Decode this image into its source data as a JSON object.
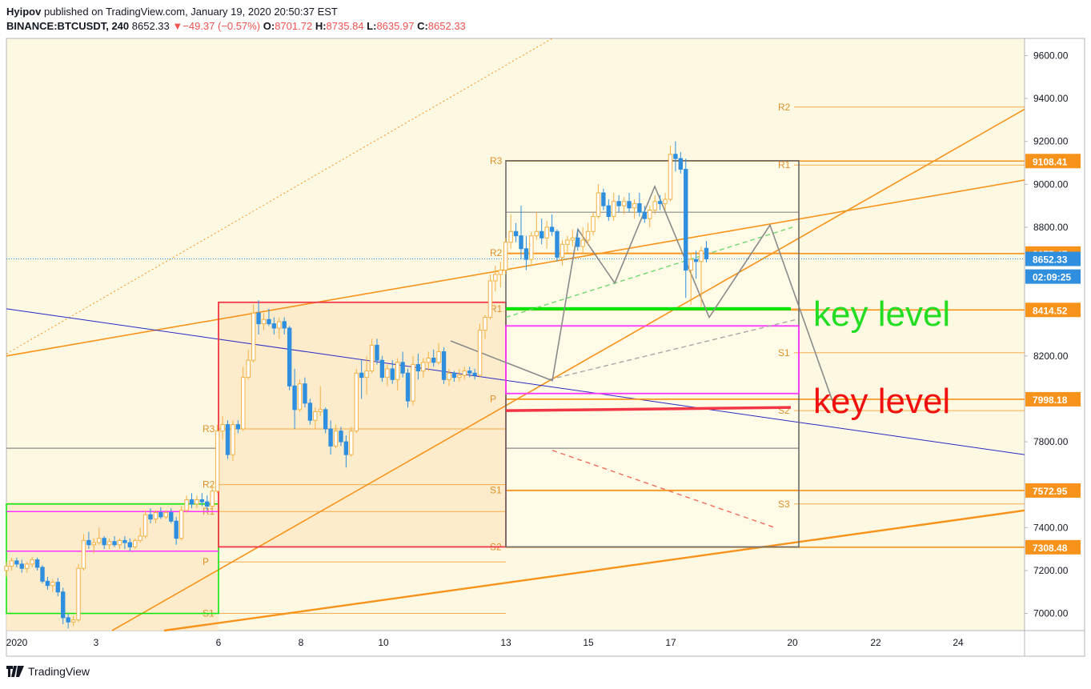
{
  "header": {
    "author": "Hyipov",
    "published_text": "published on TradingView.com, January 19, 2020 20:50:37 EST",
    "symbol": "BINANCE:BTCUSDT, 240",
    "last": "8652.33",
    "change_arrow": "▼",
    "change": "−49.37 (−0.57%)",
    "o_label": "O:",
    "o": "8701.72",
    "h_label": "H:",
    "h": "8735.84",
    "l_label": "L:",
    "l": "8635.97",
    "c_label": "C:",
    "c": "8652.33"
  },
  "footer": {
    "brand": "TradingView",
    "logo_icon": "tradingview-logo-icon"
  },
  "colors": {
    "background": "#fdf8e1",
    "orange": "#f7931a",
    "up": "#f5b041",
    "down": "#2f8fde",
    "red": "#f23645",
    "green": "#00e600",
    "magenta": "#ff33ff",
    "blue_line": "#2929c8",
    "grey": "#8a8a8a"
  },
  "chart_data": {
    "type": "candlestick",
    "ylim": [
      6920,
      9680
    ],
    "y_ticks": [
      "9600.00",
      "9400.00",
      "9200.00",
      "9000.00",
      "8800.00",
      "8200.00",
      "7800.00",
      "7400.00",
      "7200.00",
      "7000.00"
    ],
    "x_ticks": [
      "2020",
      "3",
      "6",
      "8",
      "10",
      "13",
      "15",
      "17",
      "20",
      "22",
      "24"
    ],
    "price_labels": [
      {
        "text": "9108.41",
        "value": 9108.41,
        "style": "orange"
      },
      {
        "text": "8677.47",
        "value": 8677.47,
        "style": "orange"
      },
      {
        "text": "8652.33",
        "value": 8652.33,
        "style": "blue"
      },
      {
        "text": "02:09:25",
        "value": 8570,
        "style": "blue"
      },
      {
        "text": "8414.52",
        "value": 8414.52,
        "style": "orange"
      },
      {
        "text": "7998.18",
        "value": 7998.18,
        "style": "orange"
      },
      {
        "text": "7572.95",
        "value": 7572.95,
        "style": "orange"
      },
      {
        "text": "7308.48",
        "value": 7308.48,
        "style": "orange"
      }
    ],
    "annotations": [
      {
        "text": "key level",
        "color": "green",
        "value": 8400
      },
      {
        "text": "key level",
        "color": "red",
        "value": 7995
      }
    ],
    "pivots_week1": [
      {
        "label": "R3",
        "value": 7860
      },
      {
        "label": "R2",
        "value": 7600
      },
      {
        "label": "R1",
        "value": 7475
      },
      {
        "label": "P",
        "value": 7240
      },
      {
        "label": "S1",
        "value": 7000
      }
    ],
    "pivots_week2": [
      {
        "label": "R3",
        "value": 9110
      },
      {
        "label": "R2",
        "value": 8680
      },
      {
        "label": "R1",
        "value": 8420
      },
      {
        "label": "P",
        "value": 8000
      },
      {
        "label": "S1",
        "value": 7575
      },
      {
        "label": "S2",
        "value": 7310
      }
    ],
    "pivots_week3": [
      {
        "label": "R2",
        "value": 9360
      },
      {
        "label": "R1",
        "value": 9090
      },
      {
        "label": "S1",
        "value": 8215
      },
      {
        "label": "S2",
        "value": 7945
      },
      {
        "label": "S3",
        "value": 7510
      }
    ],
    "candles": [
      {
        "o": 7200,
        "h": 7240,
        "l": 7170,
        "c": 7220
      },
      {
        "o": 7220,
        "h": 7260,
        "l": 7200,
        "c": 7245
      },
      {
        "o": 7245,
        "h": 7260,
        "l": 7215,
        "c": 7230
      },
      {
        "o": 7230,
        "h": 7250,
        "l": 7190,
        "c": 7210
      },
      {
        "o": 7210,
        "h": 7240,
        "l": 7190,
        "c": 7230
      },
      {
        "o": 7230,
        "h": 7265,
        "l": 7215,
        "c": 7250
      },
      {
        "o": 7250,
        "h": 7260,
        "l": 7200,
        "c": 7215
      },
      {
        "o": 7215,
        "h": 7225,
        "l": 7140,
        "c": 7150
      },
      {
        "o": 7150,
        "h": 7170,
        "l": 7110,
        "c": 7130
      },
      {
        "o": 7130,
        "h": 7160,
        "l": 7100,
        "c": 7145
      },
      {
        "o": 7145,
        "h": 7165,
        "l": 7080,
        "c": 7100
      },
      {
        "o": 7100,
        "h": 7120,
        "l": 6950,
        "c": 6980
      },
      {
        "o": 6980,
        "h": 7000,
        "l": 6930,
        "c": 6960
      },
      {
        "o": 6960,
        "h": 6990,
        "l": 6940,
        "c": 6970
      },
      {
        "o": 6970,
        "h": 7230,
        "l": 6960,
        "c": 7210
      },
      {
        "o": 7210,
        "h": 7370,
        "l": 7200,
        "c": 7340
      },
      {
        "o": 7340,
        "h": 7380,
        "l": 7300,
        "c": 7320
      },
      {
        "o": 7320,
        "h": 7350,
        "l": 7280,
        "c": 7330
      },
      {
        "o": 7330,
        "h": 7400,
        "l": 7320,
        "c": 7350
      },
      {
        "o": 7350,
        "h": 7360,
        "l": 7300,
        "c": 7320
      },
      {
        "o": 7320,
        "h": 7350,
        "l": 7300,
        "c": 7335
      },
      {
        "o": 7335,
        "h": 7360,
        "l": 7310,
        "c": 7320
      },
      {
        "o": 7320,
        "h": 7350,
        "l": 7300,
        "c": 7340
      },
      {
        "o": 7340,
        "h": 7360,
        "l": 7300,
        "c": 7330
      },
      {
        "o": 7330,
        "h": 7350,
        "l": 7290,
        "c": 7310
      },
      {
        "o": 7310,
        "h": 7350,
        "l": 7300,
        "c": 7340
      },
      {
        "o": 7340,
        "h": 7400,
        "l": 7330,
        "c": 7360
      },
      {
        "o": 7360,
        "h": 7480,
        "l": 7350,
        "c": 7460
      },
      {
        "o": 7460,
        "h": 7490,
        "l": 7420,
        "c": 7440
      },
      {
        "o": 7440,
        "h": 7480,
        "l": 7420,
        "c": 7470
      },
      {
        "o": 7470,
        "h": 7495,
        "l": 7440,
        "c": 7450
      },
      {
        "o": 7450,
        "h": 7480,
        "l": 7440,
        "c": 7470
      },
      {
        "o": 7470,
        "h": 7490,
        "l": 7420,
        "c": 7430
      },
      {
        "o": 7430,
        "h": 7450,
        "l": 7320,
        "c": 7350
      },
      {
        "o": 7350,
        "h": 7500,
        "l": 7340,
        "c": 7480
      },
      {
        "o": 7480,
        "h": 7550,
        "l": 7470,
        "c": 7530
      },
      {
        "o": 7530,
        "h": 7560,
        "l": 7490,
        "c": 7510
      },
      {
        "o": 7510,
        "h": 7550,
        "l": 7490,
        "c": 7530
      },
      {
        "o": 7530,
        "h": 7560,
        "l": 7500,
        "c": 7520
      },
      {
        "o": 7520,
        "h": 7550,
        "l": 7480,
        "c": 7500
      },
      {
        "o": 7500,
        "h": 7600,
        "l": 7490,
        "c": 7570
      },
      {
        "o": 7570,
        "h": 7880,
        "l": 7560,
        "c": 7850
      },
      {
        "o": 7850,
        "h": 7920,
        "l": 7810,
        "c": 7880
      },
      {
        "o": 7880,
        "h": 7900,
        "l": 7720,
        "c": 7740
      },
      {
        "o": 7740,
        "h": 7900,
        "l": 7710,
        "c": 7880
      },
      {
        "o": 7880,
        "h": 7900,
        "l": 7840,
        "c": 7860
      },
      {
        "o": 7860,
        "h": 8150,
        "l": 7850,
        "c": 8100
      },
      {
        "o": 8100,
        "h": 8230,
        "l": 8090,
        "c": 8180
      },
      {
        "o": 8180,
        "h": 8440,
        "l": 8170,
        "c": 8400
      },
      {
        "o": 8400,
        "h": 8460,
        "l": 8300,
        "c": 8350
      },
      {
        "o": 8350,
        "h": 8400,
        "l": 8320,
        "c": 8370
      },
      {
        "o": 8370,
        "h": 8420,
        "l": 8340,
        "c": 8350
      },
      {
        "o": 8350,
        "h": 8380,
        "l": 8300,
        "c": 8330
      },
      {
        "o": 8330,
        "h": 8380,
        "l": 8280,
        "c": 8360
      },
      {
        "o": 8360,
        "h": 8380,
        "l": 8300,
        "c": 8330
      },
      {
        "o": 8330,
        "h": 8340,
        "l": 8040,
        "c": 8060
      },
      {
        "o": 8060,
        "h": 8140,
        "l": 7860,
        "c": 7950
      },
      {
        "o": 7950,
        "h": 8090,
        "l": 7940,
        "c": 8070
      },
      {
        "o": 8070,
        "h": 8100,
        "l": 7960,
        "c": 7980
      },
      {
        "o": 7980,
        "h": 8000,
        "l": 7880,
        "c": 7900
      },
      {
        "o": 7900,
        "h": 7960,
        "l": 7860,
        "c": 7940
      },
      {
        "o": 7940,
        "h": 8060,
        "l": 7920,
        "c": 7950
      },
      {
        "o": 7950,
        "h": 7960,
        "l": 7840,
        "c": 7860
      },
      {
        "o": 7860,
        "h": 7900,
        "l": 7740,
        "c": 7780
      },
      {
        "o": 7780,
        "h": 7880,
        "l": 7770,
        "c": 7850
      },
      {
        "o": 7850,
        "h": 7870,
        "l": 7780,
        "c": 7800
      },
      {
        "o": 7800,
        "h": 7830,
        "l": 7680,
        "c": 7740
      },
      {
        "o": 7740,
        "h": 7870,
        "l": 7730,
        "c": 7850
      },
      {
        "o": 7850,
        "h": 8140,
        "l": 7840,
        "c": 8120
      },
      {
        "o": 8120,
        "h": 8180,
        "l": 8000,
        "c": 8100
      },
      {
        "o": 8100,
        "h": 8200,
        "l": 8020,
        "c": 8130
      },
      {
        "o": 8130,
        "h": 8280,
        "l": 8120,
        "c": 8250
      },
      {
        "o": 8250,
        "h": 8280,
        "l": 8160,
        "c": 8180
      },
      {
        "o": 8180,
        "h": 8200,
        "l": 8080,
        "c": 8100
      },
      {
        "o": 8100,
        "h": 8160,
        "l": 8060,
        "c": 8140
      },
      {
        "o": 8140,
        "h": 8180,
        "l": 8070,
        "c": 8090
      },
      {
        "o": 8090,
        "h": 8190,
        "l": 8040,
        "c": 8170
      },
      {
        "o": 8170,
        "h": 8220,
        "l": 8100,
        "c": 8120
      },
      {
        "o": 8120,
        "h": 8140,
        "l": 7960,
        "c": 7990
      },
      {
        "o": 7990,
        "h": 8200,
        "l": 7970,
        "c": 8160
      },
      {
        "o": 8160,
        "h": 8210,
        "l": 8090,
        "c": 8130
      },
      {
        "o": 8130,
        "h": 8190,
        "l": 8100,
        "c": 8170
      },
      {
        "o": 8170,
        "h": 8220,
        "l": 8130,
        "c": 8190
      },
      {
        "o": 8190,
        "h": 8230,
        "l": 8150,
        "c": 8170
      },
      {
        "o": 8170,
        "h": 8260,
        "l": 8160,
        "c": 8220
      },
      {
        "o": 8220,
        "h": 8240,
        "l": 8070,
        "c": 8090
      },
      {
        "o": 8090,
        "h": 8140,
        "l": 8060,
        "c": 8120
      },
      {
        "o": 8120,
        "h": 8130,
        "l": 8080,
        "c": 8100
      },
      {
        "o": 8100,
        "h": 8140,
        "l": 8080,
        "c": 8110
      },
      {
        "o": 8110,
        "h": 8150,
        "l": 8090,
        "c": 8130
      },
      {
        "o": 8130,
        "h": 8150,
        "l": 8100,
        "c": 8120
      },
      {
        "o": 8120,
        "h": 8140,
        "l": 8090,
        "c": 8110
      },
      {
        "o": 8110,
        "h": 8350,
        "l": 8100,
        "c": 8320
      },
      {
        "o": 8320,
        "h": 8390,
        "l": 8280,
        "c": 8380
      },
      {
        "o": 8380,
        "h": 8580,
        "l": 8370,
        "c": 8550
      },
      {
        "o": 8550,
        "h": 8620,
        "l": 8500,
        "c": 8580
      },
      {
        "o": 8580,
        "h": 8640,
        "l": 8520,
        "c": 8600
      },
      {
        "o": 8600,
        "h": 8750,
        "l": 8580,
        "c": 8730
      },
      {
        "o": 8730,
        "h": 8860,
        "l": 8700,
        "c": 8780
      },
      {
        "o": 8780,
        "h": 8820,
        "l": 8730,
        "c": 8760
      },
      {
        "o": 8760,
        "h": 8900,
        "l": 8650,
        "c": 8700
      },
      {
        "o": 8700,
        "h": 8760,
        "l": 8600,
        "c": 8650
      },
      {
        "o": 8650,
        "h": 8780,
        "l": 8620,
        "c": 8760
      },
      {
        "o": 8760,
        "h": 8870,
        "l": 8740,
        "c": 8780
      },
      {
        "o": 8780,
        "h": 8840,
        "l": 8720,
        "c": 8750
      },
      {
        "o": 8750,
        "h": 8830,
        "l": 8700,
        "c": 8800
      },
      {
        "o": 8800,
        "h": 8860,
        "l": 8760,
        "c": 8780
      },
      {
        "o": 8780,
        "h": 8790,
        "l": 8640,
        "c": 8660
      },
      {
        "o": 8660,
        "h": 8740,
        "l": 8620,
        "c": 8720
      },
      {
        "o": 8720,
        "h": 8760,
        "l": 8680,
        "c": 8740
      },
      {
        "o": 8740,
        "h": 8790,
        "l": 8710,
        "c": 8750
      },
      {
        "o": 8750,
        "h": 8790,
        "l": 8690,
        "c": 8710
      },
      {
        "o": 8710,
        "h": 8800,
        "l": 8680,
        "c": 8740
      },
      {
        "o": 8740,
        "h": 8820,
        "l": 8720,
        "c": 8780
      },
      {
        "o": 8780,
        "h": 8870,
        "l": 8760,
        "c": 8850
      },
      {
        "o": 8850,
        "h": 9000,
        "l": 8840,
        "c": 8960
      },
      {
        "o": 8960,
        "h": 8980,
        "l": 8880,
        "c": 8900
      },
      {
        "o": 8900,
        "h": 8930,
        "l": 8830,
        "c": 8850
      },
      {
        "o": 8850,
        "h": 8960,
        "l": 8830,
        "c": 8920
      },
      {
        "o": 8920,
        "h": 8950,
        "l": 8870,
        "c": 8900
      },
      {
        "o": 8900,
        "h": 8940,
        "l": 8860,
        "c": 8920
      },
      {
        "o": 8920,
        "h": 8960,
        "l": 8870,
        "c": 8890
      },
      {
        "o": 8890,
        "h": 8930,
        "l": 8840,
        "c": 8910
      },
      {
        "o": 8910,
        "h": 8960,
        "l": 8850,
        "c": 8870
      },
      {
        "o": 8870,
        "h": 8900,
        "l": 8820,
        "c": 8840
      },
      {
        "o": 8840,
        "h": 8900,
        "l": 8800,
        "c": 8880
      },
      {
        "o": 8880,
        "h": 8950,
        "l": 8860,
        "c": 8920
      },
      {
        "o": 8920,
        "h": 8950,
        "l": 8880,
        "c": 8910
      },
      {
        "o": 8910,
        "h": 8960,
        "l": 8880,
        "c": 8930
      },
      {
        "o": 8930,
        "h": 9180,
        "l": 8920,
        "c": 9140
      },
      {
        "o": 9140,
        "h": 9200,
        "l": 9060,
        "c": 9120
      },
      {
        "o": 9120,
        "h": 9150,
        "l": 9050,
        "c": 9070
      },
      {
        "o": 9070,
        "h": 9120,
        "l": 8470,
        "c": 8600
      },
      {
        "o": 8600,
        "h": 8680,
        "l": 8440,
        "c": 8650
      },
      {
        "o": 8650,
        "h": 8690,
        "l": 8560,
        "c": 8640
      },
      {
        "o": 8640,
        "h": 8710,
        "l": 8430,
        "c": 8690
      },
      {
        "o": 8701.72,
        "h": 8735.84,
        "l": 8635.97,
        "c": 8652.33
      }
    ]
  }
}
